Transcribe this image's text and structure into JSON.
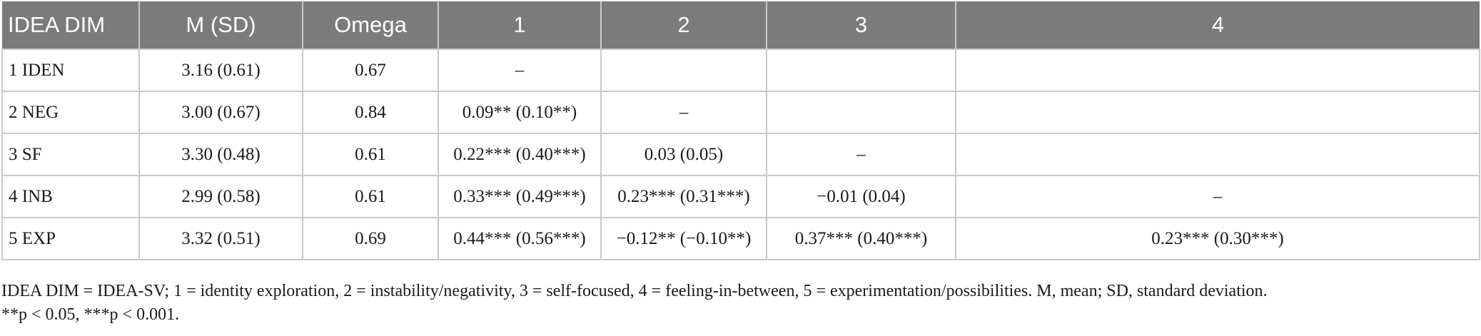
{
  "table": {
    "headers": [
      "IDEA DIM",
      "M (SD)",
      "Omega",
      "1",
      "2",
      "3",
      "4"
    ],
    "rows": [
      [
        "1 IDEN",
        "3.16 (0.61)",
        "0.67",
        "–",
        "",
        "",
        ""
      ],
      [
        "2 NEG",
        "3.00 (0.67)",
        "0.84",
        "0.09** (0.10**)",
        "–",
        "",
        ""
      ],
      [
        "3 SF",
        "3.30 (0.48)",
        "0.61",
        "0.22*** (0.40***)",
        "0.03 (0.05)",
        "–",
        ""
      ],
      [
        "4 INB",
        "2.99 (0.58)",
        "0.61",
        "0.33*** (0.49***)",
        "0.23*** (0.31***)",
        "−0.01 (0.04)",
        "–"
      ],
      [
        "5 EXP",
        "3.32 (0.51)",
        "0.69",
        "0.44*** (0.56***)",
        "−0.12** (−0.10**)",
        "0.37*** (0.40***)",
        "0.23*** (0.30***)"
      ]
    ]
  },
  "notes": {
    "line1": "IDEA DIM = IDEA-SV; 1 = identity exploration, 2 = instability/negativity, 3 = self-focused, 4 = feeling-in-between, 5 = experimentation/possibilities. M, mean; SD, standard deviation.",
    "line2": "**p < 0.05, ***p < 0.001."
  }
}
